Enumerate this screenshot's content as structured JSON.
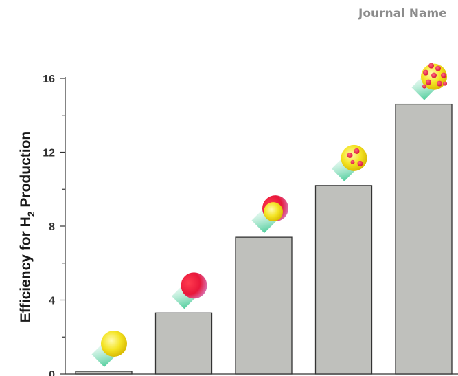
{
  "header": {
    "journal_name": "Journal Name"
  },
  "chart_data": {
    "type": "bar",
    "title": "",
    "xlabel": "",
    "ylabel_parts": [
      "Efficiency for H",
      "2",
      " Production"
    ],
    "ylim": [
      0,
      16
    ],
    "yticks": [
      "0",
      "4",
      "8",
      "12",
      "16"
    ],
    "values": [
      0.15,
      3.3,
      7.4,
      10.2,
      14.6
    ],
    "bar_color": "#bfc0bc",
    "bar_edge_color": "#333333",
    "particle_icons": [
      "yellow-sphere-icon",
      "red-sphere-icon",
      "red-yellow-core-shell-icon",
      "yellow-sphere-few-red-dots-icon",
      "yellow-sphere-many-red-dots-icon"
    ],
    "colors": {
      "yellow": "#f2e01c",
      "red": "#e8173a",
      "pink": "#f08ab4",
      "beam": "#4fcf9a"
    }
  }
}
